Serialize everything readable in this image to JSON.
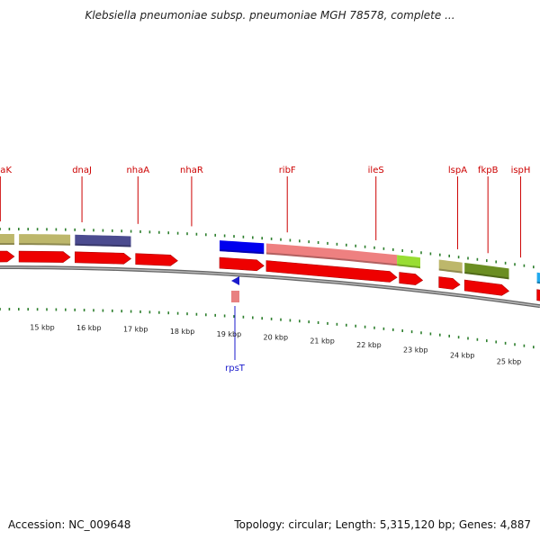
{
  "title": "Klebsiella pneumoniae subsp. pneumoniae MGH 78578, complete ...",
  "footer": {
    "accession": "Accession: NC_009648",
    "summary": "Topology: circular; Length: 5,315,120 bp; Genes: 4,887"
  },
  "colors": {
    "label_red": "#cc0000",
    "label_blue": "#1a1acc",
    "tick_green": "#2d7f2d",
    "forward_cds": "#ee0000",
    "backbone": "#888888"
  },
  "kbp_ticks": [
    {
      "label": "15 kbp",
      "kbp": 15
    },
    {
      "label": "16 kbp",
      "kbp": 16
    },
    {
      "label": "17 kbp",
      "kbp": 17
    },
    {
      "label": "18 kbp",
      "kbp": 18
    },
    {
      "label": "19 kbp",
      "kbp": 19
    },
    {
      "label": "20 kbp",
      "kbp": 20
    },
    {
      "label": "21 kbp",
      "kbp": 21
    },
    {
      "label": "22 kbp",
      "kbp": 22
    },
    {
      "label": "23 kbp",
      "kbp": 23
    },
    {
      "label": "24 kbp",
      "kbp": 24
    },
    {
      "label": "25 kbp",
      "kbp": 25
    }
  ],
  "gene_labels": [
    {
      "name": "dnaK",
      "kbp": 14.1,
      "color": "#cc0000"
    },
    {
      "name": "dnaJ",
      "kbp": 15.85,
      "color": "#cc0000"
    },
    {
      "name": "nhaA",
      "kbp": 17.05,
      "color": "#cc0000"
    },
    {
      "name": "nhaR",
      "kbp": 18.2,
      "color": "#cc0000"
    },
    {
      "name": "ribF",
      "kbp": 20.25,
      "color": "#cc0000"
    },
    {
      "name": "ileS",
      "kbp": 22.15,
      "color": "#cc0000"
    },
    {
      "name": "lspA",
      "kbp": 23.9,
      "color": "#cc0000"
    },
    {
      "name": "fkpB",
      "kbp": 24.55,
      "color": "#cc0000"
    },
    {
      "name": "ispH",
      "kbp": 25.25,
      "color": "#cc0000"
    }
  ],
  "feature_bars": [
    {
      "start": 13.0,
      "end": 14.4,
      "color": "#bdb76b"
    },
    {
      "start": 14.5,
      "end": 15.6,
      "color": "#bdb76b"
    },
    {
      "start": 15.7,
      "end": 16.9,
      "color": "#4b4b8f"
    },
    {
      "start": 18.8,
      "end": 19.75,
      "color": "#0000ee"
    },
    {
      "start": 19.8,
      "end": 22.6,
      "color": "#ee8080"
    },
    {
      "start": 22.6,
      "end": 23.1,
      "color": "#99dd33"
    },
    {
      "start": 23.5,
      "end": 24.0,
      "color": "#bdb76b"
    },
    {
      "start": 24.05,
      "end": 25.0,
      "color": "#6b8e23"
    },
    {
      "start": 25.6,
      "end": 25.9,
      "color": "#22aaee"
    }
  ],
  "forward_cds": [
    {
      "start": 13.0,
      "end": 14.4
    },
    {
      "start": 14.5,
      "end": 15.6
    },
    {
      "start": 15.7,
      "end": 16.9
    },
    {
      "start": 17.0,
      "end": 17.9
    },
    {
      "start": 18.8,
      "end": 19.75
    },
    {
      "start": 19.8,
      "end": 22.6
    },
    {
      "start": 22.65,
      "end": 23.15
    },
    {
      "start": 23.5,
      "end": 23.95
    },
    {
      "start": 24.05,
      "end": 25.0
    },
    {
      "start": 25.6,
      "end": 25.9
    }
  ],
  "reverse_features": [
    {
      "name": "rpsT",
      "start": 18.25,
      "end": 18.5,
      "color": "#1a1acc"
    }
  ]
}
